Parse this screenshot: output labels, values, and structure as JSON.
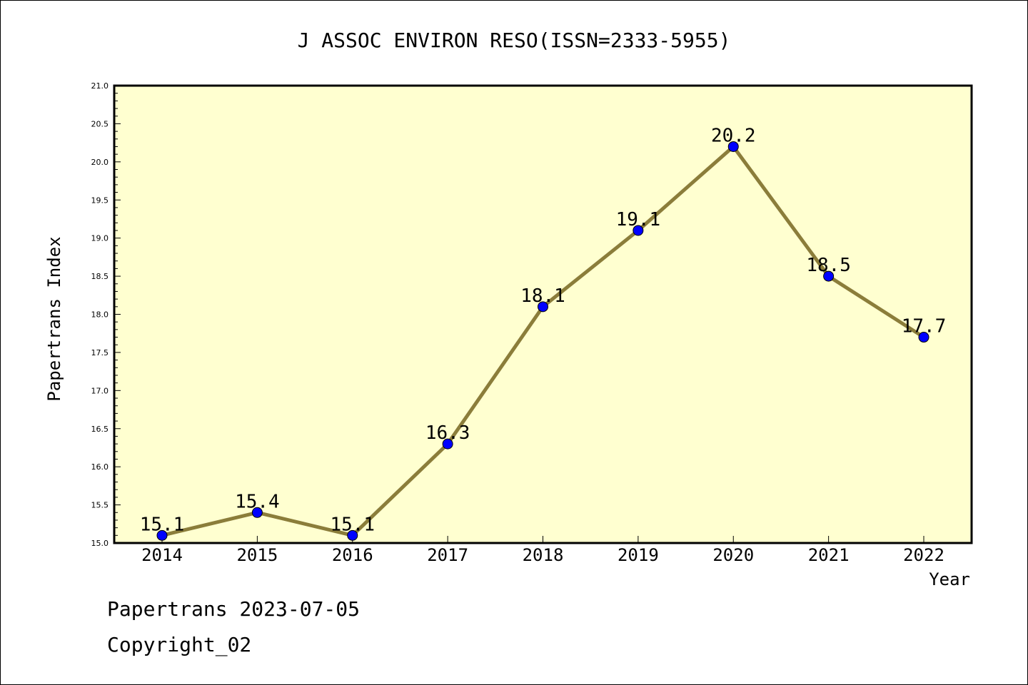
{
  "chart_data": {
    "type": "line",
    "title": "J ASSOC ENVIRON RESO(ISSN=2333-5955)",
    "xlabel": "Year",
    "ylabel": "Papertrans Index",
    "categories": [
      "2014",
      "2015",
      "2016",
      "2017",
      "2018",
      "2019",
      "2020",
      "2021",
      "2022"
    ],
    "series": [
      {
        "values": [
          15.1,
          15.4,
          15.1,
          16.3,
          18.1,
          19.1,
          20.2,
          18.5,
          17.7
        ],
        "labels": [
          "15.1",
          "15.4",
          "15.1",
          "16.3",
          "18.1",
          "19.1",
          "20.2",
          "18.5",
          "17.7"
        ]
      }
    ],
    "ylim": [
      15.0,
      21.0
    ],
    "yticks": [
      "15.0",
      "15.5",
      "16.0",
      "16.5",
      "17.0",
      "17.5",
      "18.0",
      "18.5",
      "19.0",
      "19.5",
      "20.0",
      "20.5",
      "21.0"
    ],
    "grid": false,
    "colors": {
      "plot_background": "#ffffd0",
      "line": "#8b7d3a",
      "marker": "#0000ff"
    }
  },
  "footer": {
    "line1": "Papertrans 2023-07-05",
    "line2": "Copyright_02"
  }
}
